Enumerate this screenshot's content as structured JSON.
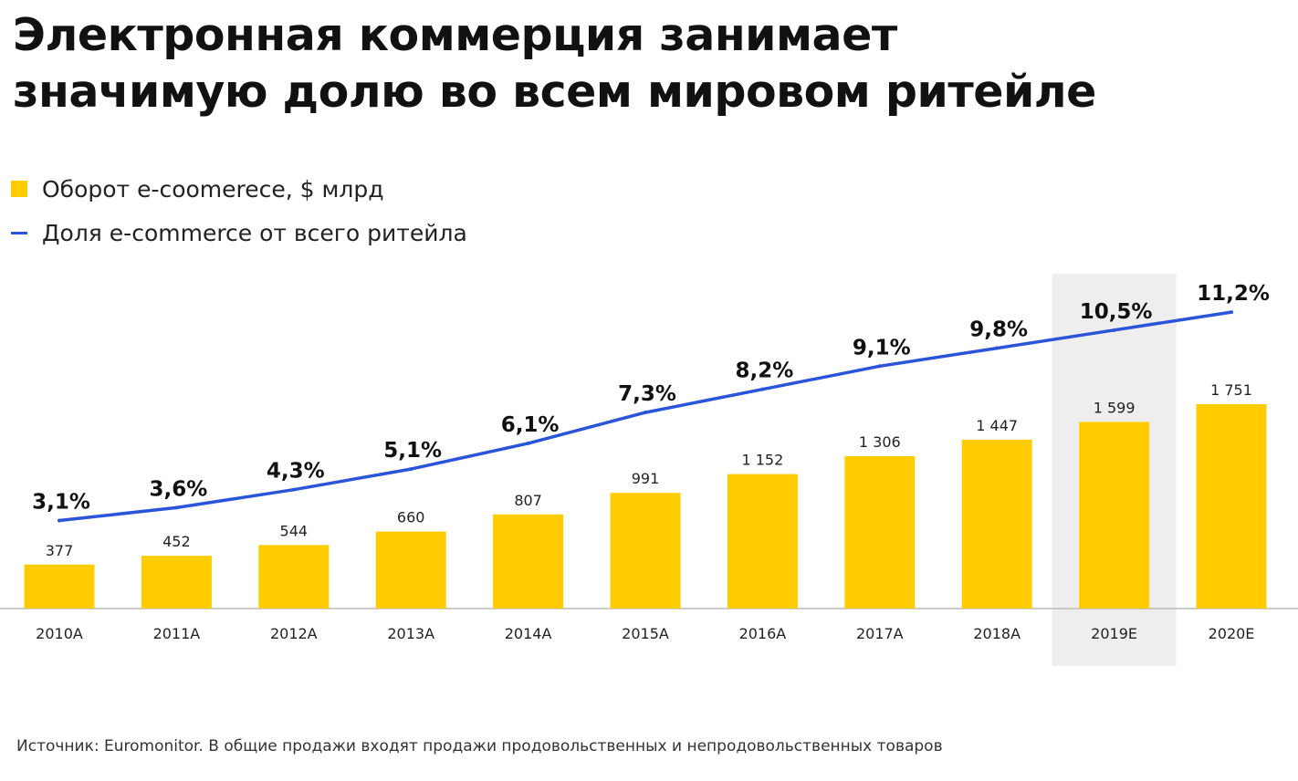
{
  "title": {
    "line1": "Электронная коммерция занимает",
    "line2": "значимую долю во всем мировом ритейле"
  },
  "legend": {
    "bar_label": "Оборот e-coomerece, $ млрд",
    "line_label": "Доля e-commerce от всего ритейла"
  },
  "colors": {
    "bar": "#ffcc00",
    "line": "#2a55d9",
    "highlight": "#eeeeee",
    "axis": "#bbbbbb"
  },
  "chart_data": {
    "type": "bar",
    "title": "Электронная коммерция занимает значимую долю во всем мировом ритейле",
    "categories": [
      "2010A",
      "2011A",
      "2012A",
      "2013A",
      "2014A",
      "2015A",
      "2016A",
      "2017A",
      "2018A",
      "2019E",
      "2020E"
    ],
    "highlight_category": "2019E",
    "series": [
      {
        "name": "Оборот e-coomerece, $ млрд",
        "kind": "bar",
        "values": [
          377,
          452,
          544,
          660,
          807,
          991,
          1152,
          1306,
          1447,
          1599,
          1751
        ],
        "labels": [
          "377",
          "452",
          "544",
          "660",
          "807",
          "991",
          "1 152",
          "1 306",
          "1 447",
          "1 599",
          "1 751"
        ]
      },
      {
        "name": "Доля e-commerce от всего ритейла",
        "kind": "line",
        "values": [
          3.1,
          3.6,
          4.3,
          5.1,
          6.1,
          7.3,
          8.2,
          9.1,
          9.8,
          10.5,
          11.2
        ],
        "labels": [
          "3,1%",
          "3,6%",
          "4,3%",
          "5,1%",
          "6,1%",
          "7,3%",
          "8,2%",
          "9,1%",
          "9,8%",
          "10,5%",
          "11,2%"
        ]
      }
    ],
    "xlabel": "",
    "ylabel": "",
    "grid": false,
    "legend_position": "top-left"
  },
  "source": "Источник: Euromonitor. В общие продажи входят продажи продовольственных и непродовольственных товаров"
}
